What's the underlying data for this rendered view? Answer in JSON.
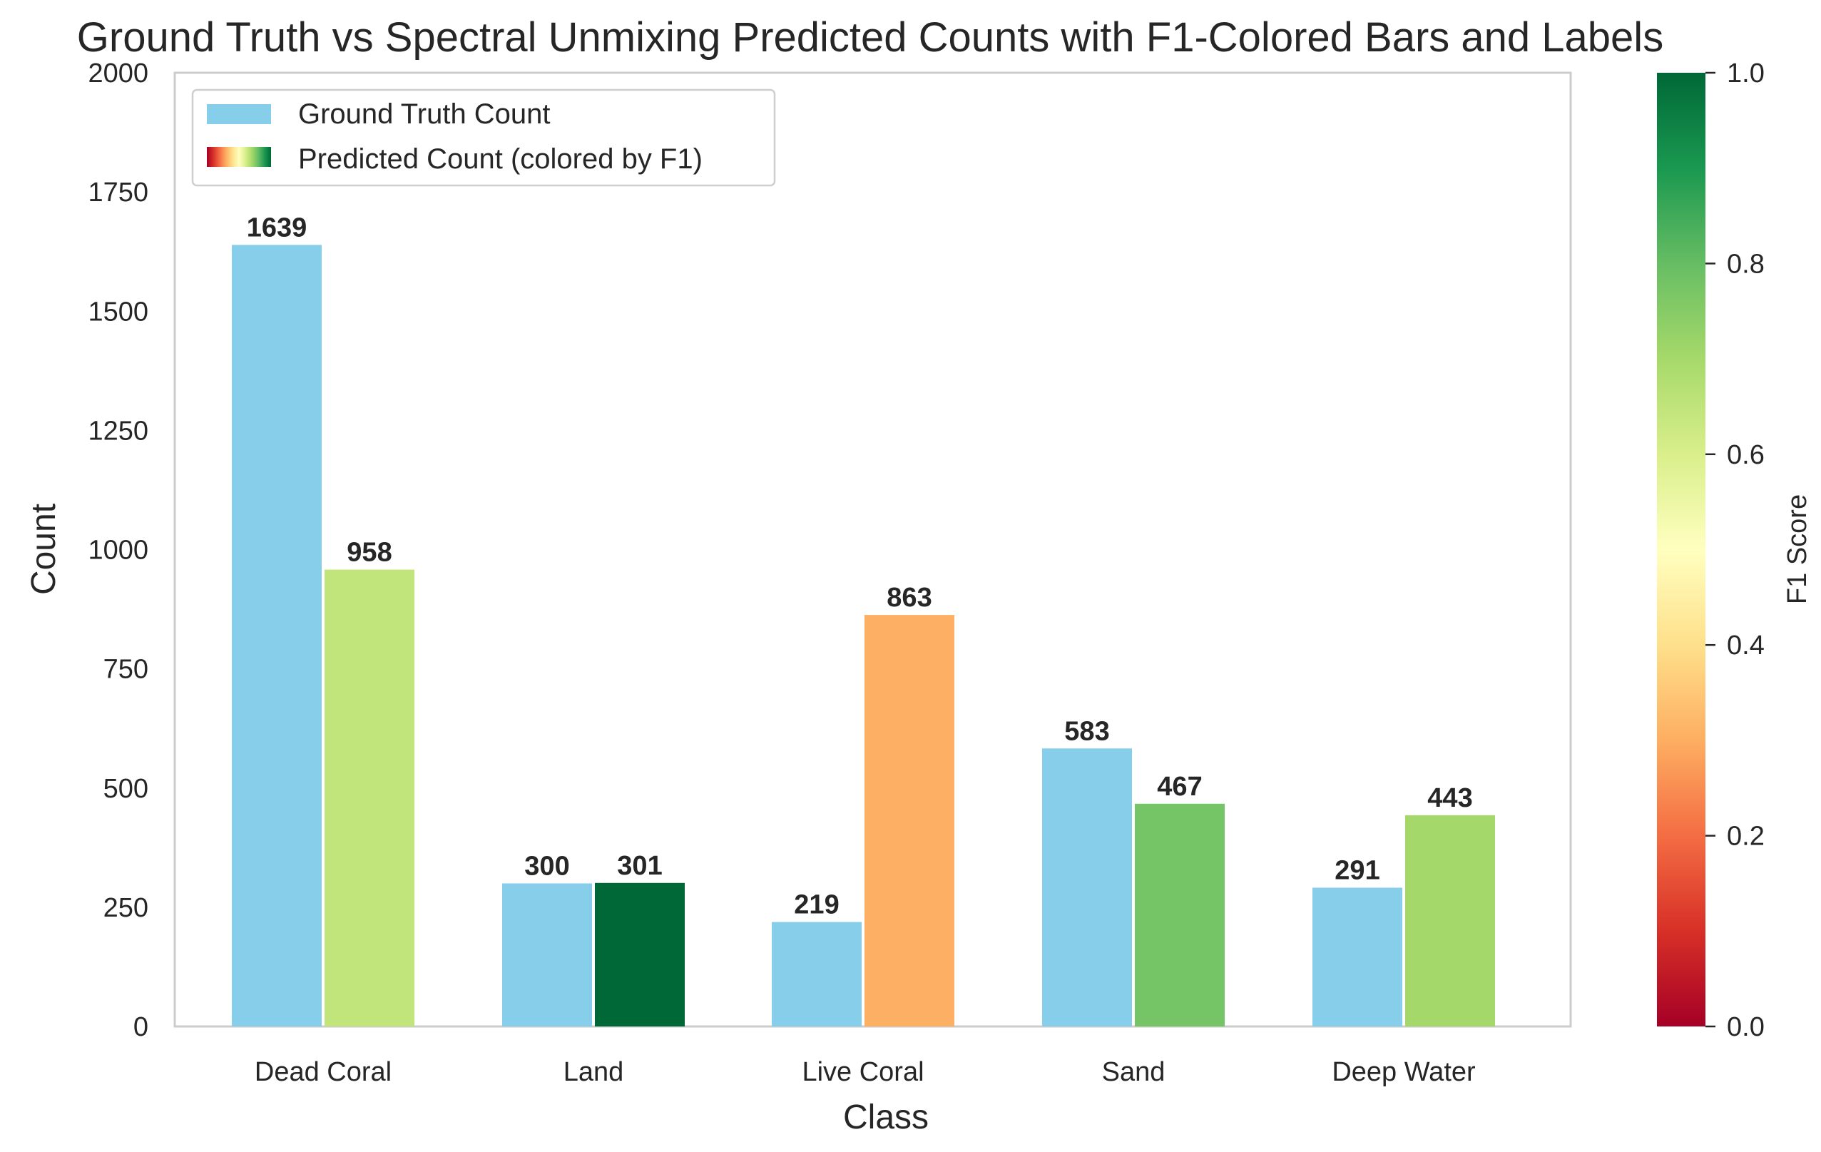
{
  "chart_data": {
    "type": "bar",
    "title": "Ground Truth vs Spectral Unmixing Predicted Counts with F1-Colored Bars and Labels",
    "xlabel": "Class",
    "ylabel": "Count",
    "ylim": [
      0,
      2000
    ],
    "yticks": [
      0,
      250,
      500,
      750,
      1000,
      1250,
      1500,
      1750,
      2000
    ],
    "categories": [
      "Dead Coral",
      "Land",
      "Live Coral",
      "Sand",
      "Deep Water"
    ],
    "series": [
      {
        "name": "Ground Truth Count",
        "values": [
          1639,
          300,
          219,
          583,
          291
        ],
        "color": "#87ceeb"
      },
      {
        "name": "Predicted Count (colored by F1)",
        "values": [
          958,
          301,
          863,
          467,
          443
        ],
        "colors": [
          "#c1e57a",
          "#006837",
          "#fdb064",
          "#75c465",
          "#a5d86a"
        ]
      }
    ],
    "colorbar": {
      "label": "F1 Score",
      "range": [
        0,
        1
      ],
      "ticks": [
        "0.0",
        "0.2",
        "0.4",
        "0.6",
        "0.8",
        "1.0"
      ],
      "colormap": "RdYlGn",
      "stops": [
        "#a50026",
        "#d73027",
        "#f46d43",
        "#fdae61",
        "#fee08b",
        "#ffffbf",
        "#d9ef8b",
        "#a6d96a",
        "#66bd63",
        "#1a9850",
        "#006837"
      ]
    },
    "legend_position": "top-left",
    "grid": false
  }
}
